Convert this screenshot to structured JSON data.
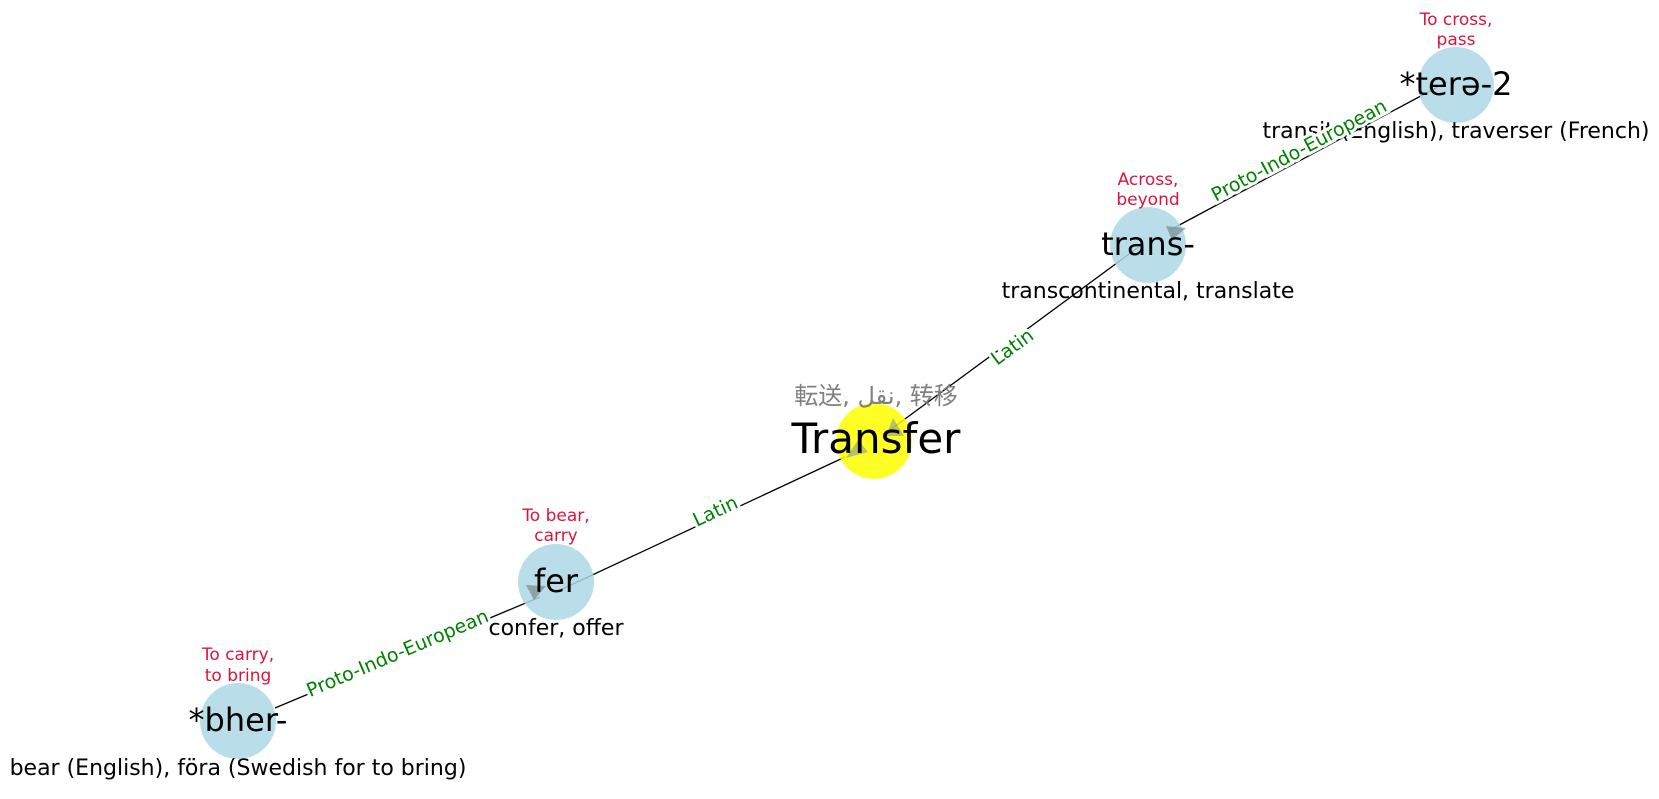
{
  "colors": {
    "root_node": "#add8e6",
    "main_node": "#ffff00",
    "meaning_text": "#dc143c",
    "edge_label": "#008000",
    "translations_text": "#808080",
    "edge_line": "#000000",
    "arrow": "#7f8f94"
  },
  "main": {
    "word": "Transfer",
    "translations": "転送, نقل, 转移"
  },
  "nodes": {
    "tere": {
      "word": "*terə-2",
      "meaning_line1": "To cross,",
      "meaning_line2": "pass",
      "examples": "transit (English), traverser (French)"
    },
    "trans": {
      "word": "trans-",
      "meaning_line1": "Across,",
      "meaning_line2": "beyond",
      "examples": "transcontinental, translate"
    },
    "fer": {
      "word": "fer",
      "meaning_line1": "To bear,",
      "meaning_line2": "carry",
      "examples": "confer, offer"
    },
    "bher": {
      "word": "*bher-",
      "meaning_line1": "To carry,",
      "meaning_line2": "to bring",
      "examples": "bear (English), föra (Swedish for to bring)"
    }
  },
  "edges": {
    "tere_trans": "Proto-Indo-European",
    "trans_main": "Latin",
    "main_fer": "Latin",
    "fer_bher": "Proto-Indo-European"
  }
}
